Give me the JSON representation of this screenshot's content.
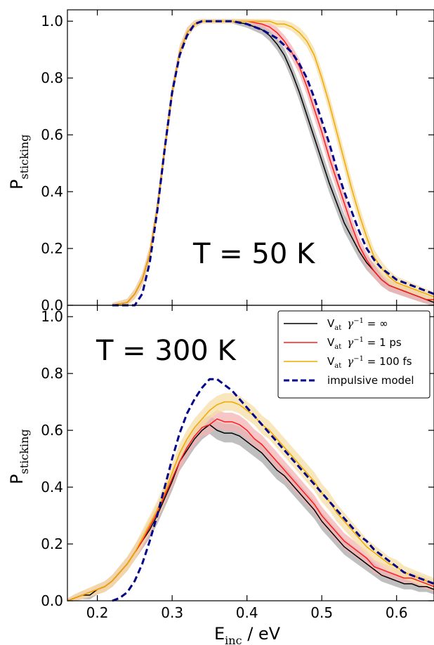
{
  "chart_data": [
    {
      "type": "line",
      "panel": "top",
      "annotation": "T = 50 K",
      "ylabel": {
        "main": "P",
        "sub": "sticking"
      },
      "xlim": [
        0.16,
        0.65
      ],
      "ylim": [
        0.0,
        1.04
      ],
      "yticks": [
        "0.0",
        "0.2",
        "0.4",
        "0.6",
        "0.8",
        "1.0"
      ],
      "series": [
        {
          "color": "#000000",
          "dashed": false,
          "band": "#a9a9a9",
          "x": [
            0.22,
            0.24,
            0.25,
            0.26,
            0.27,
            0.28,
            0.29,
            0.3,
            0.31,
            0.32,
            0.33,
            0.34,
            0.36,
            0.38,
            0.4,
            0.42,
            0.43,
            0.44,
            0.45,
            0.46,
            0.47,
            0.48,
            0.49,
            0.5,
            0.51,
            0.52,
            0.53,
            0.54,
            0.55,
            0.56,
            0.57,
            0.58,
            0.59,
            0.6,
            0.61,
            0.62,
            0.63,
            0.64,
            0.65
          ],
          "y": [
            0.0,
            0.01,
            0.04,
            0.09,
            0.18,
            0.34,
            0.55,
            0.75,
            0.89,
            0.96,
            0.99,
            1.0,
            1.0,
            1.0,
            0.99,
            0.97,
            0.95,
            0.92,
            0.88,
            0.82,
            0.75,
            0.67,
            0.59,
            0.51,
            0.43,
            0.36,
            0.29,
            0.24,
            0.19,
            0.15,
            0.12,
            0.09,
            0.07,
            0.06,
            0.05,
            0.04,
            0.03,
            0.02,
            0.01
          ]
        },
        {
          "color": "#ff1c1c",
          "dashed": false,
          "band": "#f4b4b4",
          "x": [
            0.22,
            0.24,
            0.25,
            0.26,
            0.27,
            0.28,
            0.29,
            0.3,
            0.31,
            0.32,
            0.33,
            0.34,
            0.36,
            0.38,
            0.4,
            0.42,
            0.43,
            0.44,
            0.45,
            0.46,
            0.47,
            0.48,
            0.49,
            0.5,
            0.51,
            0.52,
            0.53,
            0.54,
            0.55,
            0.56,
            0.57,
            0.58,
            0.59,
            0.6,
            0.61,
            0.62,
            0.63,
            0.64,
            0.65
          ],
          "y": [
            0.0,
            0.01,
            0.04,
            0.09,
            0.18,
            0.34,
            0.55,
            0.75,
            0.89,
            0.96,
            0.99,
            1.0,
            1.0,
            1.0,
            1.0,
            0.99,
            0.98,
            0.96,
            0.93,
            0.89,
            0.84,
            0.77,
            0.69,
            0.61,
            0.52,
            0.44,
            0.36,
            0.28,
            0.21,
            0.16,
            0.12,
            0.09,
            0.07,
            0.06,
            0.05,
            0.04,
            0.03,
            0.02,
            0.02
          ]
        },
        {
          "color": "#f2a900",
          "dashed": false,
          "band": "#f6dfa6",
          "x": [
            0.22,
            0.24,
            0.25,
            0.26,
            0.27,
            0.28,
            0.29,
            0.3,
            0.31,
            0.32,
            0.33,
            0.34,
            0.36,
            0.38,
            0.4,
            0.42,
            0.43,
            0.44,
            0.45,
            0.46,
            0.47,
            0.48,
            0.49,
            0.5,
            0.51,
            0.52,
            0.53,
            0.54,
            0.55,
            0.56,
            0.57,
            0.58,
            0.59,
            0.6,
            0.61,
            0.62,
            0.63,
            0.64,
            0.65
          ],
          "y": [
            0.0,
            0.01,
            0.04,
            0.09,
            0.18,
            0.34,
            0.55,
            0.75,
            0.89,
            0.96,
            0.99,
            1.0,
            1.0,
            1.0,
            1.0,
            1.0,
            1.0,
            0.99,
            0.99,
            0.98,
            0.96,
            0.93,
            0.88,
            0.8,
            0.71,
            0.61,
            0.51,
            0.41,
            0.32,
            0.24,
            0.17,
            0.13,
            0.1,
            0.08,
            0.07,
            0.06,
            0.05,
            0.04,
            0.03
          ]
        },
        {
          "color": "#00008b",
          "dashed": true,
          "band": null,
          "x": [
            0.22,
            0.24,
            0.25,
            0.26,
            0.27,
            0.28,
            0.29,
            0.3,
            0.31,
            0.32,
            0.33,
            0.34,
            0.36,
            0.38,
            0.4,
            0.42,
            0.44,
            0.46,
            0.47,
            0.48,
            0.49,
            0.5,
            0.51,
            0.52,
            0.53,
            0.54,
            0.55,
            0.56,
            0.57,
            0.58,
            0.59,
            0.6,
            0.61,
            0.62,
            0.63,
            0.64,
            0.65
          ],
          "y": [
            0.0,
            0.0,
            0.0,
            0.04,
            0.15,
            0.33,
            0.55,
            0.75,
            0.88,
            0.95,
            0.99,
            1.0,
            1.0,
            1.0,
            0.99,
            0.97,
            0.94,
            0.89,
            0.85,
            0.8,
            0.73,
            0.65,
            0.57,
            0.48,
            0.4,
            0.33,
            0.26,
            0.2,
            0.16,
            0.13,
            0.11,
            0.09,
            0.08,
            0.07,
            0.06,
            0.05,
            0.04
          ]
        }
      ]
    },
    {
      "type": "line",
      "panel": "bottom",
      "annotation": "T = 300 K",
      "ylabel": {
        "main": "P",
        "sub": "sticking"
      },
      "xlabel": {
        "main": "E",
        "sub": "inc",
        "rest": " / eV"
      },
      "xlim": [
        0.16,
        0.65
      ],
      "ylim": [
        0.0,
        1.04
      ],
      "xticks": [
        "0.2",
        "0.3",
        "0.4",
        "0.5",
        "0.6"
      ],
      "yticks": [
        "0.0",
        "0.2",
        "0.4",
        "0.6",
        "0.8",
        "1.0"
      ],
      "series": [
        {
          "color": "#000000",
          "dashed": false,
          "band": "#a9a9a9",
          "x": [
            0.16,
            0.17,
            0.18,
            0.19,
            0.2,
            0.21,
            0.22,
            0.23,
            0.24,
            0.25,
            0.26,
            0.27,
            0.28,
            0.29,
            0.3,
            0.31,
            0.32,
            0.33,
            0.34,
            0.35,
            0.36,
            0.37,
            0.38,
            0.39,
            0.4,
            0.41,
            0.42,
            0.43,
            0.44,
            0.45,
            0.46,
            0.47,
            0.48,
            0.49,
            0.5,
            0.51,
            0.52,
            0.53,
            0.54,
            0.55,
            0.56,
            0.57,
            0.58,
            0.59,
            0.6,
            0.61,
            0.62,
            0.63,
            0.64,
            0.65
          ],
          "y": [
            0.0,
            0.01,
            0.02,
            0.02,
            0.04,
            0.05,
            0.07,
            0.1,
            0.13,
            0.17,
            0.21,
            0.25,
            0.3,
            0.36,
            0.42,
            0.49,
            0.53,
            0.57,
            0.6,
            0.62,
            0.6,
            0.59,
            0.59,
            0.58,
            0.56,
            0.54,
            0.52,
            0.49,
            0.46,
            0.44,
            0.41,
            0.38,
            0.35,
            0.32,
            0.28,
            0.25,
            0.22,
            0.19,
            0.17,
            0.15,
            0.13,
            0.11,
            0.09,
            0.08,
            0.07,
            0.06,
            0.06,
            0.05,
            0.05,
            0.04
          ]
        },
        {
          "color": "#ff1c1c",
          "dashed": false,
          "band": "#f4b4b4",
          "x": [
            0.16,
            0.17,
            0.18,
            0.19,
            0.2,
            0.21,
            0.22,
            0.23,
            0.24,
            0.25,
            0.26,
            0.27,
            0.28,
            0.29,
            0.3,
            0.31,
            0.32,
            0.33,
            0.34,
            0.35,
            0.36,
            0.37,
            0.38,
            0.39,
            0.4,
            0.41,
            0.42,
            0.43,
            0.44,
            0.45,
            0.46,
            0.47,
            0.48,
            0.49,
            0.5,
            0.51,
            0.52,
            0.53,
            0.54,
            0.55,
            0.56,
            0.57,
            0.58,
            0.59,
            0.6,
            0.61,
            0.62,
            0.63,
            0.64,
            0.65
          ],
          "y": [
            0.0,
            0.01,
            0.02,
            0.03,
            0.04,
            0.05,
            0.07,
            0.1,
            0.13,
            0.17,
            0.21,
            0.26,
            0.31,
            0.37,
            0.43,
            0.49,
            0.54,
            0.58,
            0.61,
            0.62,
            0.64,
            0.63,
            0.63,
            0.62,
            0.6,
            0.57,
            0.55,
            0.52,
            0.49,
            0.46,
            0.43,
            0.4,
            0.37,
            0.34,
            0.3,
            0.27,
            0.24,
            0.21,
            0.19,
            0.17,
            0.15,
            0.12,
            0.11,
            0.1,
            0.09,
            0.08,
            0.08,
            0.07,
            0.06,
            0.05
          ]
        },
        {
          "color": "#f2a900",
          "dashed": false,
          "band": "#f6dfa6",
          "x": [
            0.16,
            0.17,
            0.18,
            0.19,
            0.2,
            0.21,
            0.22,
            0.23,
            0.24,
            0.25,
            0.26,
            0.27,
            0.28,
            0.29,
            0.3,
            0.31,
            0.32,
            0.33,
            0.34,
            0.35,
            0.36,
            0.37,
            0.38,
            0.39,
            0.4,
            0.41,
            0.42,
            0.43,
            0.44,
            0.45,
            0.46,
            0.47,
            0.48,
            0.49,
            0.5,
            0.51,
            0.52,
            0.53,
            0.54,
            0.55,
            0.56,
            0.57,
            0.58,
            0.59,
            0.6,
            0.61,
            0.62,
            0.63,
            0.64,
            0.65
          ],
          "y": [
            0.0,
            0.01,
            0.02,
            0.03,
            0.04,
            0.05,
            0.07,
            0.1,
            0.13,
            0.17,
            0.22,
            0.27,
            0.32,
            0.38,
            0.45,
            0.52,
            0.57,
            0.61,
            0.64,
            0.67,
            0.69,
            0.7,
            0.7,
            0.69,
            0.67,
            0.65,
            0.62,
            0.6,
            0.57,
            0.54,
            0.51,
            0.48,
            0.45,
            0.42,
            0.38,
            0.35,
            0.31,
            0.28,
            0.25,
            0.22,
            0.19,
            0.17,
            0.15,
            0.13,
            0.12,
            0.1,
            0.09,
            0.08,
            0.07,
            0.06
          ]
        },
        {
          "color": "#00008b",
          "dashed": true,
          "band": null,
          "x": [
            0.22,
            0.23,
            0.24,
            0.25,
            0.26,
            0.27,
            0.28,
            0.29,
            0.3,
            0.31,
            0.32,
            0.33,
            0.34,
            0.35,
            0.36,
            0.37,
            0.38,
            0.39,
            0.4,
            0.41,
            0.42,
            0.43,
            0.44,
            0.45,
            0.46,
            0.47,
            0.48,
            0.49,
            0.5,
            0.51,
            0.52,
            0.53,
            0.54,
            0.55,
            0.56,
            0.57,
            0.58,
            0.59,
            0.6,
            0.61,
            0.62,
            0.63,
            0.64,
            0.65
          ],
          "y": [
            0.0,
            0.01,
            0.03,
            0.07,
            0.13,
            0.21,
            0.3,
            0.4,
            0.5,
            0.59,
            0.66,
            0.71,
            0.75,
            0.78,
            0.78,
            0.76,
            0.74,
            0.71,
            0.68,
            0.65,
            0.62,
            0.59,
            0.56,
            0.53,
            0.5,
            0.47,
            0.44,
            0.41,
            0.38,
            0.35,
            0.32,
            0.29,
            0.26,
            0.23,
            0.21,
            0.18,
            0.16,
            0.14,
            0.12,
            0.1,
            0.09,
            0.08,
            0.07,
            0.06
          ]
        }
      ],
      "legend": {
        "placement": "top-right",
        "entries": [
          {
            "main": "V",
            "sub": "at",
            "gamma": "γ",
            "sup": "−1",
            "rest": " = ∞"
          },
          {
            "main": "V",
            "sub": "at",
            "gamma": "γ",
            "sup": "−1",
            "rest": " = 1 ps"
          },
          {
            "main": "V",
            "sub": "at",
            "gamma": "γ",
            "sup": "−1",
            "rest": " = 100 fs"
          },
          {
            "main": "impulsive model",
            "sub": "",
            "gamma": "",
            "sup": "",
            "rest": ""
          }
        ]
      }
    }
  ]
}
